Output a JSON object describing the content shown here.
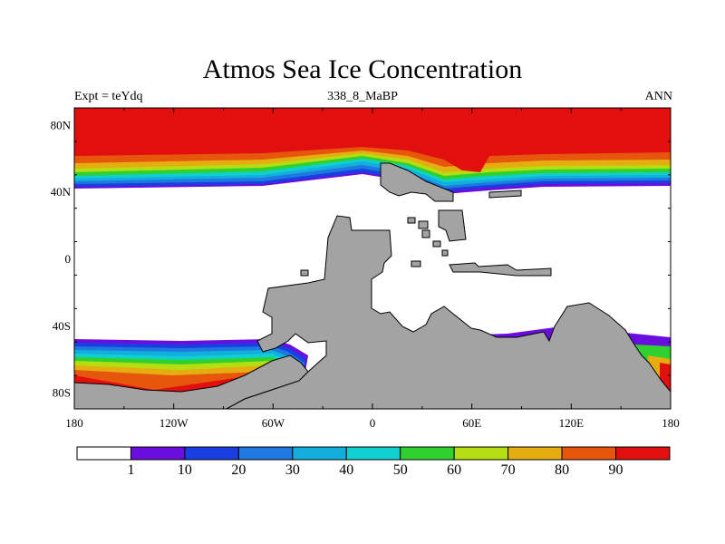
{
  "title": "Atmos Sea Ice Concentration",
  "subtitle_left": "Expt = teYdq",
  "subtitle_center": "338_8_MaBP",
  "subtitle_right": "ANN",
  "lat_labels": [
    "80N",
    "40N",
    "0",
    "40S",
    "80S"
  ],
  "lon_labels": [
    "180",
    "120W",
    "60W",
    "0",
    "60E",
    "120E",
    "180"
  ],
  "colorbar": {
    "labels": [
      "1",
      "10",
      "20",
      "30",
      "40",
      "50",
      "60",
      "70",
      "80",
      "90"
    ],
    "colors": [
      "#ffffff",
      "#6a0ee0",
      "#1a3fe0",
      "#1d78e0",
      "#12aede",
      "#10cfcf",
      "#2fd12f",
      "#b5dd12",
      "#e5ad10",
      "#e6560c",
      "#e20f0f"
    ]
  },
  "colors": {
    "land": "#a3a3a3",
    "coast": "#000000"
  }
}
